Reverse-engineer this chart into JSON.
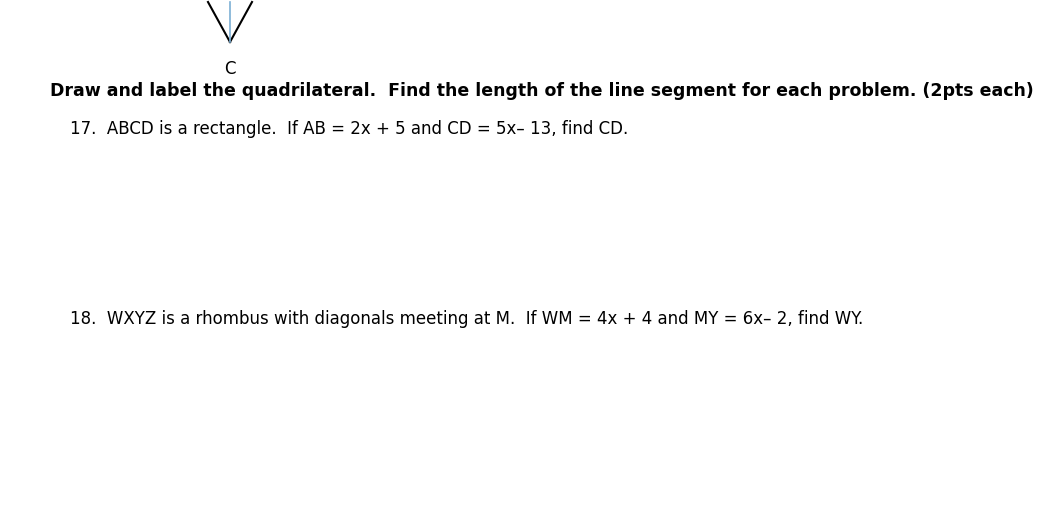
{
  "background_color": "#ffffff",
  "fig_width": 10.62,
  "fig_height": 5.18,
  "dpi": 100,
  "title_text": "Draw and label the quadrilateral.  Find the length of the line segment for each problem. (2pts each)",
  "title_fontsize": 12.5,
  "problem17_text": "17.  ABCD is a rectangle.  If AB = 2x + 5 and CD = 5x– 13, find CD.",
  "problem17_fontsize": 12,
  "problem18_text": "18.  WXYZ is a rhombus with diagonals meeting at M.  If WM = 4x + 4 and MY = 6x– 2, find WY.",
  "problem18_fontsize": 12,
  "label_c": "C",
  "label_c_fontsize": 12,
  "shape_color": "#000000",
  "shape_lw": 1.5,
  "tick_color": "#7bafd4",
  "tick_lw": 1.2
}
